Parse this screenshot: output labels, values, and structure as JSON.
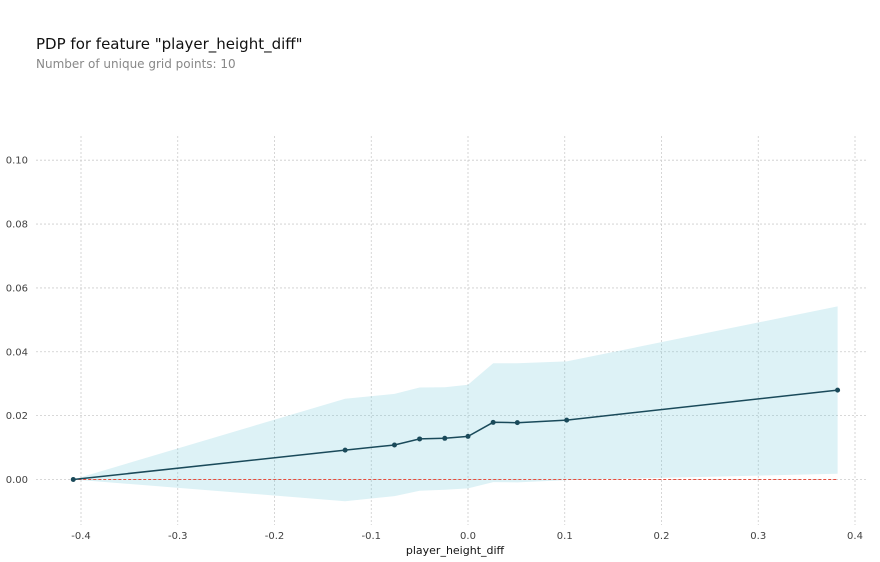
{
  "title": "PDP for feature \"player_height_diff\"",
  "subtitle": "Number of unique grid points: 10",
  "colors": {
    "line": "#1a4a5a",
    "band": "#66c2d7",
    "baseline": "#e74c3c",
    "grid": "#cccccc"
  },
  "chart_data": {
    "type": "line",
    "title": "PDP for feature \"player_height_diff\"",
    "subtitle": "Number of unique grid points: 10",
    "xlabel": "player_height_diff",
    "ylabel": "",
    "xlim": [
      -0.43,
      0.42
    ],
    "ylim": [
      -0.015,
      0.108
    ],
    "xticks": [
      -0.4,
      -0.3,
      -0.2,
      -0.1,
      0.0,
      0.1,
      0.2,
      0.3,
      0.4
    ],
    "xtick_labels": [
      "-0.4",
      "-0.3",
      "-0.2",
      "-0.1",
      "0.0",
      "0.1",
      "0.2",
      "0.3",
      "0.4"
    ],
    "yticks": [
      0.0,
      0.02,
      0.04,
      0.06,
      0.08,
      0.1
    ],
    "ytick_labels": [
      "0.00",
      "0.02",
      "0.04",
      "0.06",
      "0.08",
      "0.10"
    ],
    "grid": true,
    "series": [
      {
        "x": [
          -0.408,
          -0.127,
          -0.076,
          -0.05,
          -0.024,
          0.0,
          0.026,
          0.051,
          0.102,
          0.382
        ],
        "y": [
          0.0,
          0.0092,
          0.0108,
          0.0127,
          0.0129,
          0.0135,
          0.0179,
          0.0178,
          0.0186,
          0.028
        ],
        "upper": [
          0.0,
          0.0253,
          0.0268,
          0.0288,
          0.0289,
          0.0297,
          0.0364,
          0.0364,
          0.037,
          0.0542
        ],
        "lower": [
          0.0,
          -0.0068,
          -0.0052,
          -0.0035,
          -0.0032,
          -0.0028,
          -0.0008,
          -0.0009,
          -0.0002,
          0.0018
        ]
      }
    ],
    "baseline": 0.0
  }
}
